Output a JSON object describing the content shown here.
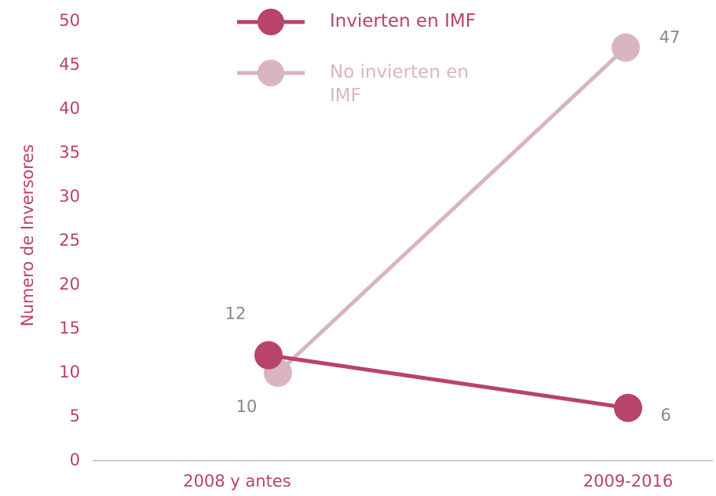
{
  "chart_data": {
    "type": "line",
    "y_label": "Numero de Inversores",
    "categories": [
      "2008 y antes",
      "2009-2016"
    ],
    "series": [
      {
        "name": "Invierten en IMF",
        "color": "#b8436b",
        "values": [
          12,
          6
        ]
      },
      {
        "name": "No invierten en IMF",
        "color": "#d9b4c3",
        "values": [
          10,
          47
        ]
      }
    ],
    "ylim": [
      0,
      50
    ],
    "yticks": [
      0,
      5,
      10,
      15,
      20,
      25,
      30,
      35,
      40,
      45,
      50
    ]
  }
}
